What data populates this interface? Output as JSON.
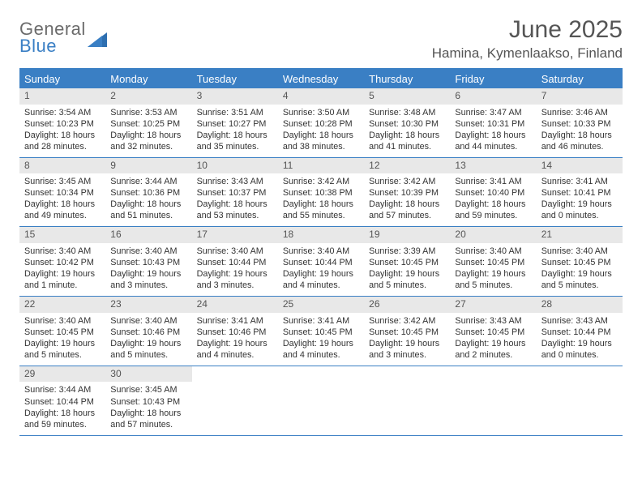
{
  "logo": {
    "top": "General",
    "bottom": "Blue"
  },
  "title": "June 2025",
  "location": "Hamina, Kymenlaakso, Finland",
  "colors": {
    "accent": "#3a7fc4",
    "header_bg": "#3a7fc4",
    "header_text": "#ffffff",
    "daynum_bg": "#e8e8e8",
    "body_text": "#333333",
    "title_text": "#555555"
  },
  "day_names": [
    "Sunday",
    "Monday",
    "Tuesday",
    "Wednesday",
    "Thursday",
    "Friday",
    "Saturday"
  ],
  "weeks": [
    [
      {
        "num": "1",
        "sunrise": "Sunrise: 3:54 AM",
        "sunset": "Sunset: 10:23 PM",
        "daylight": "Daylight: 18 hours and 28 minutes."
      },
      {
        "num": "2",
        "sunrise": "Sunrise: 3:53 AM",
        "sunset": "Sunset: 10:25 PM",
        "daylight": "Daylight: 18 hours and 32 minutes."
      },
      {
        "num": "3",
        "sunrise": "Sunrise: 3:51 AM",
        "sunset": "Sunset: 10:27 PM",
        "daylight": "Daylight: 18 hours and 35 minutes."
      },
      {
        "num": "4",
        "sunrise": "Sunrise: 3:50 AM",
        "sunset": "Sunset: 10:28 PM",
        "daylight": "Daylight: 18 hours and 38 minutes."
      },
      {
        "num": "5",
        "sunrise": "Sunrise: 3:48 AM",
        "sunset": "Sunset: 10:30 PM",
        "daylight": "Daylight: 18 hours and 41 minutes."
      },
      {
        "num": "6",
        "sunrise": "Sunrise: 3:47 AM",
        "sunset": "Sunset: 10:31 PM",
        "daylight": "Daylight: 18 hours and 44 minutes."
      },
      {
        "num": "7",
        "sunrise": "Sunrise: 3:46 AM",
        "sunset": "Sunset: 10:33 PM",
        "daylight": "Daylight: 18 hours and 46 minutes."
      }
    ],
    [
      {
        "num": "8",
        "sunrise": "Sunrise: 3:45 AM",
        "sunset": "Sunset: 10:34 PM",
        "daylight": "Daylight: 18 hours and 49 minutes."
      },
      {
        "num": "9",
        "sunrise": "Sunrise: 3:44 AM",
        "sunset": "Sunset: 10:36 PM",
        "daylight": "Daylight: 18 hours and 51 minutes."
      },
      {
        "num": "10",
        "sunrise": "Sunrise: 3:43 AM",
        "sunset": "Sunset: 10:37 PM",
        "daylight": "Daylight: 18 hours and 53 minutes."
      },
      {
        "num": "11",
        "sunrise": "Sunrise: 3:42 AM",
        "sunset": "Sunset: 10:38 PM",
        "daylight": "Daylight: 18 hours and 55 minutes."
      },
      {
        "num": "12",
        "sunrise": "Sunrise: 3:42 AM",
        "sunset": "Sunset: 10:39 PM",
        "daylight": "Daylight: 18 hours and 57 minutes."
      },
      {
        "num": "13",
        "sunrise": "Sunrise: 3:41 AM",
        "sunset": "Sunset: 10:40 PM",
        "daylight": "Daylight: 18 hours and 59 minutes."
      },
      {
        "num": "14",
        "sunrise": "Sunrise: 3:41 AM",
        "sunset": "Sunset: 10:41 PM",
        "daylight": "Daylight: 19 hours and 0 minutes."
      }
    ],
    [
      {
        "num": "15",
        "sunrise": "Sunrise: 3:40 AM",
        "sunset": "Sunset: 10:42 PM",
        "daylight": "Daylight: 19 hours and 1 minute."
      },
      {
        "num": "16",
        "sunrise": "Sunrise: 3:40 AM",
        "sunset": "Sunset: 10:43 PM",
        "daylight": "Daylight: 19 hours and 3 minutes."
      },
      {
        "num": "17",
        "sunrise": "Sunrise: 3:40 AM",
        "sunset": "Sunset: 10:44 PM",
        "daylight": "Daylight: 19 hours and 3 minutes."
      },
      {
        "num": "18",
        "sunrise": "Sunrise: 3:40 AM",
        "sunset": "Sunset: 10:44 PM",
        "daylight": "Daylight: 19 hours and 4 minutes."
      },
      {
        "num": "19",
        "sunrise": "Sunrise: 3:39 AM",
        "sunset": "Sunset: 10:45 PM",
        "daylight": "Daylight: 19 hours and 5 minutes."
      },
      {
        "num": "20",
        "sunrise": "Sunrise: 3:40 AM",
        "sunset": "Sunset: 10:45 PM",
        "daylight": "Daylight: 19 hours and 5 minutes."
      },
      {
        "num": "21",
        "sunrise": "Sunrise: 3:40 AM",
        "sunset": "Sunset: 10:45 PM",
        "daylight": "Daylight: 19 hours and 5 minutes."
      }
    ],
    [
      {
        "num": "22",
        "sunrise": "Sunrise: 3:40 AM",
        "sunset": "Sunset: 10:45 PM",
        "daylight": "Daylight: 19 hours and 5 minutes."
      },
      {
        "num": "23",
        "sunrise": "Sunrise: 3:40 AM",
        "sunset": "Sunset: 10:46 PM",
        "daylight": "Daylight: 19 hours and 5 minutes."
      },
      {
        "num": "24",
        "sunrise": "Sunrise: 3:41 AM",
        "sunset": "Sunset: 10:46 PM",
        "daylight": "Daylight: 19 hours and 4 minutes."
      },
      {
        "num": "25",
        "sunrise": "Sunrise: 3:41 AM",
        "sunset": "Sunset: 10:45 PM",
        "daylight": "Daylight: 19 hours and 4 minutes."
      },
      {
        "num": "26",
        "sunrise": "Sunrise: 3:42 AM",
        "sunset": "Sunset: 10:45 PM",
        "daylight": "Daylight: 19 hours and 3 minutes."
      },
      {
        "num": "27",
        "sunrise": "Sunrise: 3:43 AM",
        "sunset": "Sunset: 10:45 PM",
        "daylight": "Daylight: 19 hours and 2 minutes."
      },
      {
        "num": "28",
        "sunrise": "Sunrise: 3:43 AM",
        "sunset": "Sunset: 10:44 PM",
        "daylight": "Daylight: 19 hours and 0 minutes."
      }
    ],
    [
      {
        "num": "29",
        "sunrise": "Sunrise: 3:44 AM",
        "sunset": "Sunset: 10:44 PM",
        "daylight": "Daylight: 18 hours and 59 minutes."
      },
      {
        "num": "30",
        "sunrise": "Sunrise: 3:45 AM",
        "sunset": "Sunset: 10:43 PM",
        "daylight": "Daylight: 18 hours and 57 minutes."
      },
      null,
      null,
      null,
      null,
      null
    ]
  ]
}
